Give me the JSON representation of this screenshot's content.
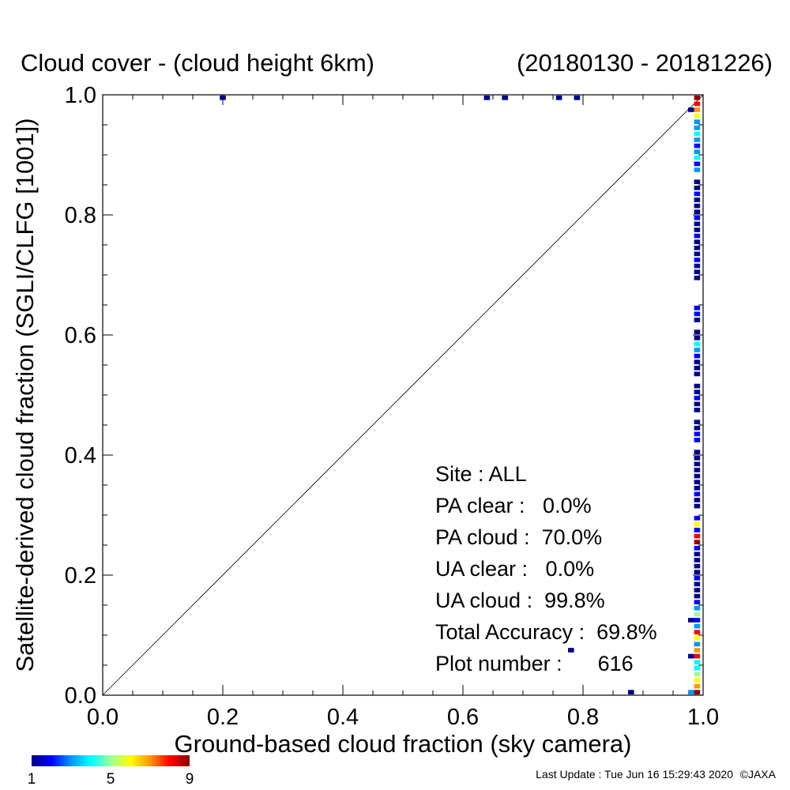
{
  "chart_data": {
    "type": "heatmap",
    "title": "Cloud cover - (cloud height 6km)",
    "period": "(20180130 - 20181226)",
    "xlabel": "Ground-based cloud fraction (sky camera)",
    "ylabel": "Satellite-derived cloud fraction (SGLI/CLFG [1001])",
    "xlim": [
      0.0,
      1.0
    ],
    "ylim": [
      0.0,
      1.0
    ],
    "x_ticks": [
      "0.0",
      "0.2",
      "0.4",
      "0.6",
      "0.8",
      "1.0"
    ],
    "y_ticks": [
      "0.0",
      "0.2",
      "0.4",
      "0.6",
      "0.8",
      "1.0"
    ],
    "reference_line": "1:1 diagonal",
    "cell_size": 0.01,
    "colorbar": {
      "min": 1,
      "max": 9,
      "tick_labels": [
        "1",
        "5",
        "9"
      ],
      "colors": [
        "#00008c",
        "#0000ff",
        "#0096ff",
        "#00ffff",
        "#9bff9b",
        "#ffff00",
        "#ff9600",
        "#ff0000",
        "#8b0000"
      ]
    },
    "points": [
      {
        "x": 0.2,
        "y": 0.995,
        "count": 1
      },
      {
        "x": 0.64,
        "y": 0.995,
        "count": 1
      },
      {
        "x": 0.67,
        "y": 0.995,
        "count": 1
      },
      {
        "x": 0.76,
        "y": 0.995,
        "count": 1
      },
      {
        "x": 0.79,
        "y": 0.995,
        "count": 1
      },
      {
        "x": 0.98,
        "y": 0.975,
        "count": 1
      },
      {
        "x": 0.78,
        "y": 0.075,
        "count": 1
      },
      {
        "x": 0.88,
        "y": 0.005,
        "count": 1
      },
      {
        "x": 0.98,
        "y": 0.125,
        "count": 1
      },
      {
        "x": 0.98,
        "y": 0.065,
        "count": 1
      },
      {
        "x": 0.98,
        "y": 0.005,
        "count": 3
      },
      {
        "x": 0.99,
        "y": 0.995,
        "count": 9
      },
      {
        "x": 0.99,
        "y": 0.985,
        "count": 8
      },
      {
        "x": 0.99,
        "y": 0.975,
        "count": 7
      },
      {
        "x": 0.99,
        "y": 0.965,
        "count": 6
      },
      {
        "x": 0.99,
        "y": 0.955,
        "count": 3
      },
      {
        "x": 0.99,
        "y": 0.945,
        "count": 3
      },
      {
        "x": 0.99,
        "y": 0.935,
        "count": 4
      },
      {
        "x": 0.99,
        "y": 0.925,
        "count": 3
      },
      {
        "x": 0.99,
        "y": 0.915,
        "count": 2
      },
      {
        "x": 0.99,
        "y": 0.905,
        "count": 3
      },
      {
        "x": 0.99,
        "y": 0.895,
        "count": 4
      },
      {
        "x": 0.99,
        "y": 0.885,
        "count": 2
      },
      {
        "x": 0.99,
        "y": 0.875,
        "count": 3
      },
      {
        "x": 0.99,
        "y": 0.855,
        "count": 1
      },
      {
        "x": 0.99,
        "y": 0.845,
        "count": 1
      },
      {
        "x": 0.99,
        "y": 0.835,
        "count": 2
      },
      {
        "x": 0.99,
        "y": 0.825,
        "count": 1
      },
      {
        "x": 0.99,
        "y": 0.815,
        "count": 1
      },
      {
        "x": 0.99,
        "y": 0.805,
        "count": 1
      },
      {
        "x": 0.99,
        "y": 0.795,
        "count": 2
      },
      {
        "x": 0.99,
        "y": 0.785,
        "count": 1
      },
      {
        "x": 0.99,
        "y": 0.775,
        "count": 1
      },
      {
        "x": 0.99,
        "y": 0.765,
        "count": 2
      },
      {
        "x": 0.99,
        "y": 0.755,
        "count": 1
      },
      {
        "x": 0.99,
        "y": 0.745,
        "count": 1
      },
      {
        "x": 0.99,
        "y": 0.735,
        "count": 1
      },
      {
        "x": 0.99,
        "y": 0.725,
        "count": 2
      },
      {
        "x": 0.99,
        "y": 0.715,
        "count": 1
      },
      {
        "x": 0.99,
        "y": 0.705,
        "count": 1
      },
      {
        "x": 0.99,
        "y": 0.695,
        "count": 1
      },
      {
        "x": 0.99,
        "y": 0.645,
        "count": 2
      },
      {
        "x": 0.99,
        "y": 0.635,
        "count": 2
      },
      {
        "x": 0.99,
        "y": 0.625,
        "count": 1
      },
      {
        "x": 0.99,
        "y": 0.605,
        "count": 1
      },
      {
        "x": 0.99,
        "y": 0.595,
        "count": 1
      },
      {
        "x": 0.99,
        "y": 0.585,
        "count": 4
      },
      {
        "x": 0.99,
        "y": 0.575,
        "count": 3
      },
      {
        "x": 0.99,
        "y": 0.565,
        "count": 2
      },
      {
        "x": 0.99,
        "y": 0.555,
        "count": 1
      },
      {
        "x": 0.99,
        "y": 0.545,
        "count": 1
      },
      {
        "x": 0.99,
        "y": 0.535,
        "count": 1
      },
      {
        "x": 0.99,
        "y": 0.515,
        "count": 1
      },
      {
        "x": 0.99,
        "y": 0.505,
        "count": 1
      },
      {
        "x": 0.99,
        "y": 0.495,
        "count": 2
      },
      {
        "x": 0.99,
        "y": 0.485,
        "count": 1
      },
      {
        "x": 0.99,
        "y": 0.475,
        "count": 1
      },
      {
        "x": 0.99,
        "y": 0.455,
        "count": 1
      },
      {
        "x": 0.99,
        "y": 0.445,
        "count": 1
      },
      {
        "x": 0.99,
        "y": 0.435,
        "count": 2
      },
      {
        "x": 0.99,
        "y": 0.425,
        "count": 2
      },
      {
        "x": 0.99,
        "y": 0.405,
        "count": 1
      },
      {
        "x": 0.99,
        "y": 0.395,
        "count": 1
      },
      {
        "x": 0.99,
        "y": 0.385,
        "count": 1
      },
      {
        "x": 0.99,
        "y": 0.375,
        "count": 1
      },
      {
        "x": 0.99,
        "y": 0.365,
        "count": 1
      },
      {
        "x": 0.99,
        "y": 0.355,
        "count": 1
      },
      {
        "x": 0.99,
        "y": 0.345,
        "count": 1
      },
      {
        "x": 0.99,
        "y": 0.335,
        "count": 2
      },
      {
        "x": 0.99,
        "y": 0.325,
        "count": 1
      },
      {
        "x": 0.99,
        "y": 0.315,
        "count": 1
      },
      {
        "x": 0.99,
        "y": 0.295,
        "count": 2
      },
      {
        "x": 0.99,
        "y": 0.285,
        "count": 6
      },
      {
        "x": 0.99,
        "y": 0.275,
        "count": 2
      },
      {
        "x": 0.99,
        "y": 0.265,
        "count": 8
      },
      {
        "x": 0.99,
        "y": 0.255,
        "count": 9
      },
      {
        "x": 0.99,
        "y": 0.245,
        "count": 2
      },
      {
        "x": 0.99,
        "y": 0.235,
        "count": 1
      },
      {
        "x": 0.99,
        "y": 0.225,
        "count": 1
      },
      {
        "x": 0.99,
        "y": 0.215,
        "count": 1
      },
      {
        "x": 0.99,
        "y": 0.205,
        "count": 1
      },
      {
        "x": 0.99,
        "y": 0.195,
        "count": 2
      },
      {
        "x": 0.99,
        "y": 0.185,
        "count": 1
      },
      {
        "x": 0.99,
        "y": 0.175,
        "count": 1
      },
      {
        "x": 0.99,
        "y": 0.165,
        "count": 1
      },
      {
        "x": 0.99,
        "y": 0.155,
        "count": 2
      },
      {
        "x": 0.99,
        "y": 0.145,
        "count": 3
      },
      {
        "x": 0.99,
        "y": 0.135,
        "count": 5
      },
      {
        "x": 0.99,
        "y": 0.125,
        "count": 2
      },
      {
        "x": 0.99,
        "y": 0.115,
        "count": 3
      },
      {
        "x": 0.99,
        "y": 0.105,
        "count": 8
      },
      {
        "x": 0.99,
        "y": 0.095,
        "count": 6
      },
      {
        "x": 0.99,
        "y": 0.085,
        "count": 3
      },
      {
        "x": 0.99,
        "y": 0.075,
        "count": 7
      },
      {
        "x": 0.99,
        "y": 0.065,
        "count": 8
      },
      {
        "x": 0.99,
        "y": 0.055,
        "count": 4
      },
      {
        "x": 0.99,
        "y": 0.045,
        "count": 4
      },
      {
        "x": 0.99,
        "y": 0.035,
        "count": 5
      },
      {
        "x": 0.99,
        "y": 0.025,
        "count": 6
      },
      {
        "x": 0.99,
        "y": 0.015,
        "count": 7
      },
      {
        "x": 0.99,
        "y": 0.005,
        "count": 9
      }
    ]
  },
  "stats": {
    "site": "Site : ALL",
    "pa_clear": "PA clear :   0.0%",
    "pa_cloud": "PA cloud :  70.0%",
    "ua_clear": "UA clear :   0.0%",
    "ua_cloud": "UA cloud :  99.8%",
    "total_accuracy": "Total Accuracy :  69.8%",
    "plot_number": "Plot number :      616"
  },
  "footer": {
    "last_update": "Last Update : Tue Jun 16 15:29:43 2020",
    "copyright": "©JAXA"
  }
}
